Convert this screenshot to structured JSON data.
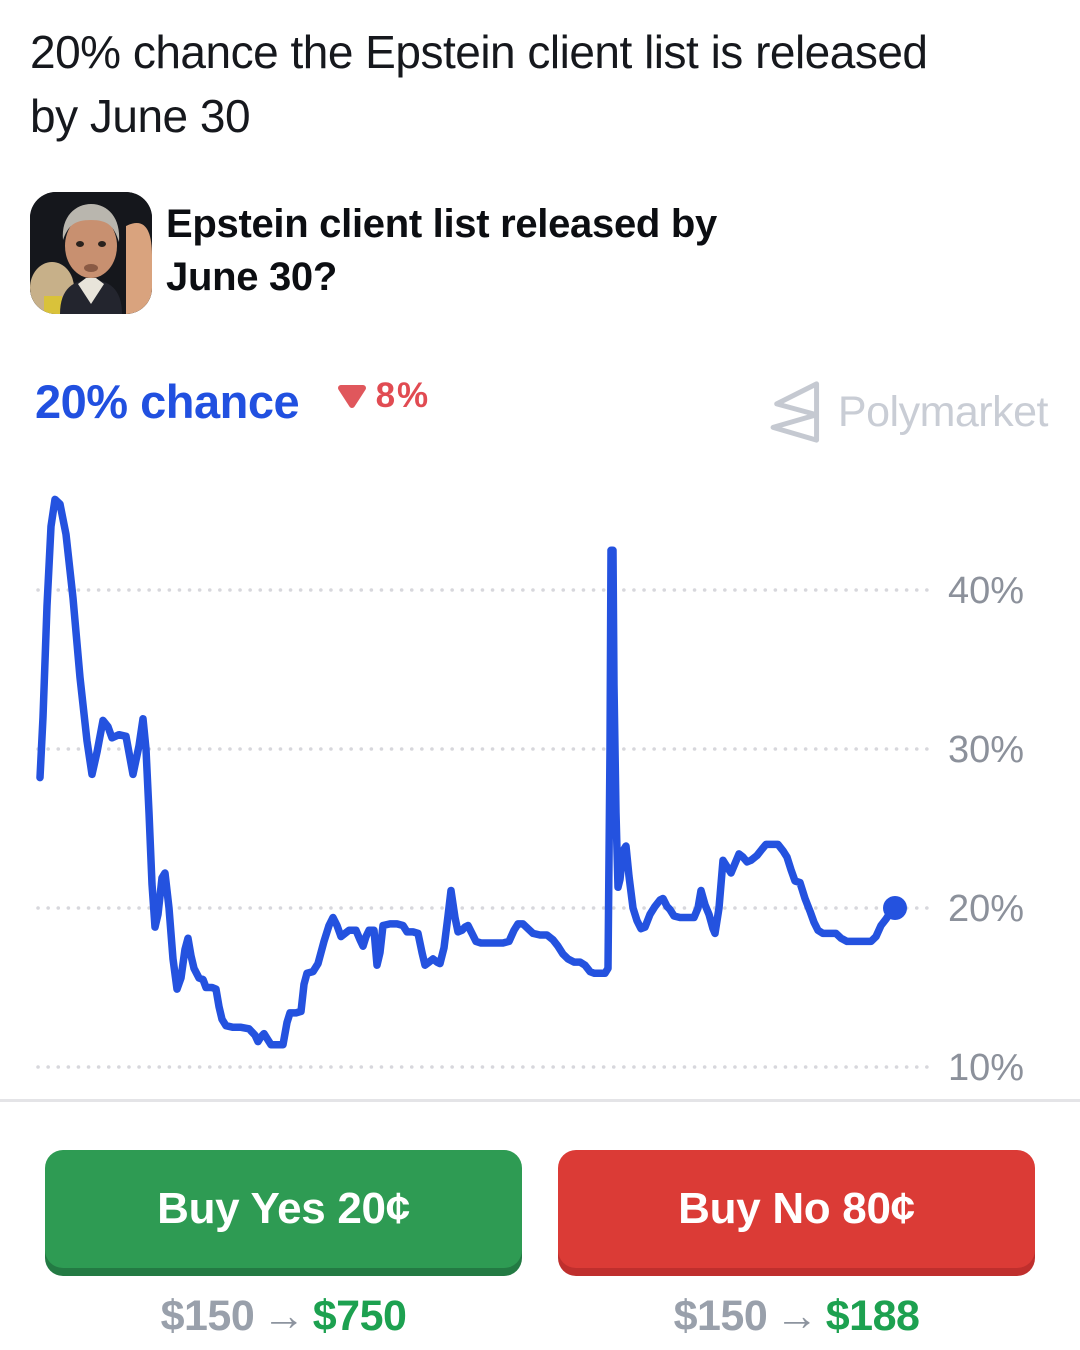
{
  "header": {
    "title": "20% chance the Epstein client list is released\nby June 30"
  },
  "market": {
    "title": "Epstein client list released by\nJune 30?"
  },
  "chance": {
    "label": "20% chance",
    "change_label": "8%",
    "change_direction": "down",
    "value_color": "#2150e0",
    "change_color": "#e14b52"
  },
  "brand": {
    "name": "Polymarket",
    "logo_color": "#c5c9d1"
  },
  "chart_data": {
    "type": "line",
    "title": "",
    "xlabel": "",
    "ylabel": "",
    "ylim": [
      8,
      47
    ],
    "grid": "dotted-horizontal",
    "legend_position": "none",
    "y_ticks": [
      {
        "value": 40,
        "label": "40%"
      },
      {
        "value": 30,
        "label": "30%"
      },
      {
        "value": 20,
        "label": "20%"
      },
      {
        "value": 10,
        "label": "10%"
      }
    ],
    "line_color": "#2452df",
    "grid_color": "#d7d7dc",
    "tick_label_color": "#8c919b",
    "end_dot": {
      "x": 895,
      "value": 20
    },
    "points": [
      [
        40,
        28.2
      ],
      [
        43,
        32
      ],
      [
        47,
        39
      ],
      [
        51,
        44
      ],
      [
        55,
        45.7
      ],
      [
        60,
        45.4
      ],
      [
        66,
        43.5
      ],
      [
        73,
        39.5
      ],
      [
        80,
        34.5
      ],
      [
        87,
        30.5
      ],
      [
        92,
        28.4
      ],
      [
        97,
        29.8
      ],
      [
        103,
        31.8
      ],
      [
        108,
        31.4
      ],
      [
        112,
        30.7
      ],
      [
        119,
        30.9
      ],
      [
        126,
        30.8
      ],
      [
        133,
        28.4
      ],
      [
        139,
        30.2
      ],
      [
        143,
        31.9
      ],
      [
        146,
        30
      ],
      [
        149,
        26
      ],
      [
        152,
        21.5
      ],
      [
        155,
        18.8
      ],
      [
        158,
        19.6
      ],
      [
        162,
        21.9
      ],
      [
        165,
        22.2
      ],
      [
        169,
        20
      ],
      [
        173,
        16.8
      ],
      [
        177,
        14.9
      ],
      [
        181,
        15.6
      ],
      [
        185,
        17.4
      ],
      [
        188,
        18.1
      ],
      [
        191,
        17
      ],
      [
        194,
        16.2
      ],
      [
        199,
        15.6
      ],
      [
        203,
        15.5
      ],
      [
        206,
        15.0
      ],
      [
        212,
        15.0
      ],
      [
        216,
        14.9
      ],
      [
        219,
        13.8
      ],
      [
        222,
        13.0
      ],
      [
        226,
        12.6
      ],
      [
        233,
        12.5
      ],
      [
        241,
        12.5
      ],
      [
        249,
        12.4
      ],
      [
        255,
        12.0
      ],
      [
        258,
        11.6
      ],
      [
        261,
        11.9
      ],
      [
        264,
        12.1
      ],
      [
        268,
        11.7
      ],
      [
        271,
        11.4
      ],
      [
        277,
        11.4
      ],
      [
        283,
        11.4
      ],
      [
        287,
        12.8
      ],
      [
        290,
        13.4
      ],
      [
        296,
        13.4
      ],
      [
        301,
        13.5
      ],
      [
        304,
        15.2
      ],
      [
        307,
        15.9
      ],
      [
        313,
        16.0
      ],
      [
        318,
        16.5
      ],
      [
        324,
        17.9
      ],
      [
        329,
        18.9
      ],
      [
        333,
        19.4
      ],
      [
        337,
        18.9
      ],
      [
        341,
        18.2
      ],
      [
        345,
        18.4
      ],
      [
        349,
        18.6
      ],
      [
        356,
        18.6
      ],
      [
        360,
        18.0
      ],
      [
        363,
        17.6
      ],
      [
        366,
        18.2
      ],
      [
        369,
        18.6
      ],
      [
        374,
        18.6
      ],
      [
        377,
        16.4
      ],
      [
        380,
        17.2
      ],
      [
        383,
        18.9
      ],
      [
        390,
        19.0
      ],
      [
        397,
        19.0
      ],
      [
        403,
        18.9
      ],
      [
        407,
        18.5
      ],
      [
        413,
        18.5
      ],
      [
        418,
        18.4
      ],
      [
        422,
        17.2
      ],
      [
        425,
        16.4
      ],
      [
        429,
        16.6
      ],
      [
        433,
        16.8
      ],
      [
        437,
        16.6
      ],
      [
        440,
        16.5
      ],
      [
        444,
        17.5
      ],
      [
        448,
        19.5
      ],
      [
        451,
        21.1
      ],
      [
        455,
        19.4
      ],
      [
        458,
        18.5
      ],
      [
        462,
        18.6
      ],
      [
        465,
        18.8
      ],
      [
        468,
        18.9
      ],
      [
        472,
        18.4
      ],
      [
        476,
        17.9
      ],
      [
        481,
        17.8
      ],
      [
        488,
        17.8
      ],
      [
        495,
        17.8
      ],
      [
        503,
        17.8
      ],
      [
        509,
        17.9
      ],
      [
        514,
        18.6
      ],
      [
        518,
        19.0
      ],
      [
        523,
        19.0
      ],
      [
        528,
        18.7
      ],
      [
        533,
        18.4
      ],
      [
        540,
        18.3
      ],
      [
        547,
        18.3
      ],
      [
        553,
        18.0
      ],
      [
        558,
        17.6
      ],
      [
        563,
        17.1
      ],
      [
        568,
        16.8
      ],
      [
        574,
        16.6
      ],
      [
        580,
        16.6
      ],
      [
        585,
        16.4
      ],
      [
        590,
        16.0
      ],
      [
        594,
        15.9
      ],
      [
        600,
        15.9
      ],
      [
        605,
        15.9
      ],
      [
        608,
        16.2
      ],
      [
        610,
        30
      ],
      [
        611,
        42.5
      ],
      [
        613,
        42.5
      ],
      [
        614,
        34
      ],
      [
        616,
        26
      ],
      [
        618,
        21.3
      ],
      [
        620,
        21.8
      ],
      [
        623,
        23.6
      ],
      [
        626,
        23.9
      ],
      [
        629,
        22
      ],
      [
        633,
        20
      ],
      [
        637,
        19.2
      ],
      [
        641,
        18.7
      ],
      [
        645,
        18.8
      ],
      [
        650,
        19.6
      ],
      [
        655,
        20.1
      ],
      [
        660,
        20.5
      ],
      [
        663,
        20.6
      ],
      [
        667,
        20.1
      ],
      [
        670,
        19.9
      ],
      [
        674,
        19.5
      ],
      [
        680,
        19.4
      ],
      [
        687,
        19.4
      ],
      [
        694,
        19.4
      ],
      [
        698,
        20
      ],
      [
        701,
        21.1
      ],
      [
        705,
        20.2
      ],
      [
        709,
        19.6
      ],
      [
        713,
        18.7
      ],
      [
        715,
        18.4
      ],
      [
        719,
        20
      ],
      [
        723,
        23.0
      ],
      [
        727,
        22.6
      ],
      [
        731,
        22.2
      ],
      [
        735,
        22.8
      ],
      [
        739,
        23.4
      ],
      [
        743,
        23.2
      ],
      [
        747,
        22.9
      ],
      [
        751,
        23.0
      ],
      [
        757,
        23.3
      ],
      [
        762,
        23.7
      ],
      [
        766,
        24.0
      ],
      [
        772,
        24.0
      ],
      [
        778,
        24.0
      ],
      [
        783,
        23.6
      ],
      [
        787,
        23.2
      ],
      [
        791,
        22.4
      ],
      [
        795,
        21.7
      ],
      [
        800,
        21.6
      ],
      [
        805,
        20.6
      ],
      [
        810,
        19.8
      ],
      [
        814,
        19.1
      ],
      [
        818,
        18.6
      ],
      [
        823,
        18.4
      ],
      [
        830,
        18.4
      ],
      [
        836,
        18.4
      ],
      [
        841,
        18.1
      ],
      [
        847,
        17.9
      ],
      [
        855,
        17.9
      ],
      [
        863,
        17.9
      ],
      [
        871,
        17.9
      ],
      [
        876,
        18.2
      ],
      [
        881,
        18.9
      ],
      [
        886,
        19.3
      ],
      [
        891,
        19.8
      ],
      [
        895,
        20.0
      ]
    ]
  },
  "actions": {
    "stake_color": "#99a0ab",
    "payout_color": "#1da150",
    "yes": {
      "label": "Buy Yes 20¢",
      "stake": "$150",
      "arrow": "→",
      "payout": "$750",
      "color": "#2e9b53",
      "edge_color": "#237a43"
    },
    "no": {
      "label": "Buy No 80¢",
      "stake": "$150",
      "arrow": "→",
      "payout": "$188",
      "color": "#db3b36",
      "edge_color": "#bf2f2d"
    }
  }
}
